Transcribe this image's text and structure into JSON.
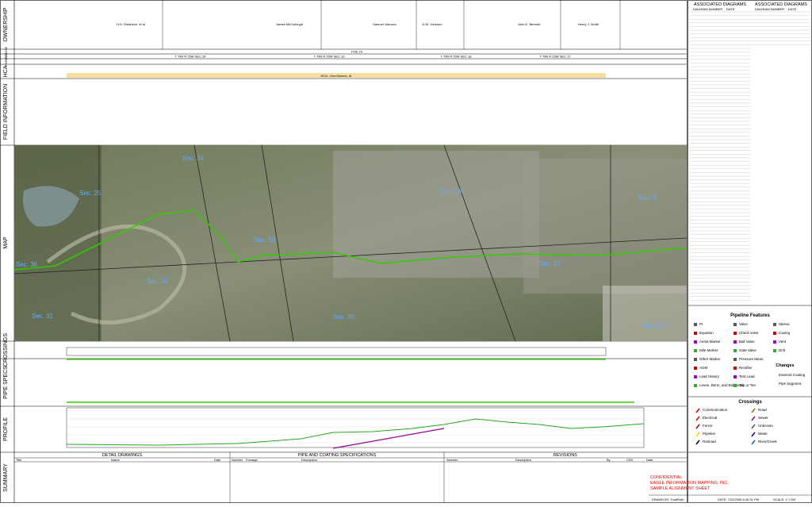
{
  "rows": [
    "OWNERSHIP",
    "STATE",
    "PLS",
    "PGRID",
    "HCA",
    "FIELD INFORMATION",
    "MAP",
    "CROSSINGS",
    "PIPE SPECS",
    "PROFILE",
    "SUMMARY"
  ],
  "ownership": [
    "H.D. Robinson, et al",
    "James McCullough",
    "Samuel Johnson",
    "D.W. Johnson",
    "John E. Bennett",
    "Henry J. Smith"
  ],
  "state": "Polk, IA",
  "pls": [
    "T 79N R 25W SEC 24",
    "T 79N R 25W SEC 19",
    "T 79N R 25W SEC 18",
    "T 79N R 25W SEC 17"
  ],
  "hca": "HCA - Des Moines, IA",
  "sections": [
    "Sec. 25",
    "Sec. 24",
    "Sec. 19",
    "Sec. 18",
    "Sec. 8",
    "Sec. 36",
    "Sec. 30",
    "Sec. 31",
    "Sec. 20",
    "Sec. 17",
    "Sec. 16"
  ],
  "diagrams": {
    "title": "ASSOCIATED DIAGRAMS",
    "columns": [
      "DIAGRAM NUMBER",
      "DATE"
    ]
  },
  "features": {
    "title": "Pipeline Features",
    "items": [
      "PI",
      "Equation",
      "Aerial Marker",
      "Mile Marker",
      "Other Marker",
      "AGM",
      "Leak History",
      "Levee, Berm, and Bulkhead",
      "Valve",
      "Check valve",
      "Ball Valve",
      "Gate Valve",
      "Pressure Meas.",
      "Rectifier",
      "Test Lead",
      "Tap or Tee",
      "Sleeve",
      "Casing",
      "Vent",
      "Drill"
    ],
    "changes_title": "Changes",
    "changes": [
      "External Coating",
      "Pipe Segment"
    ]
  },
  "crossings": {
    "title": "Crossings",
    "items": [
      "Communication",
      "Electrical",
      "Fence",
      "Pipeline",
      "Railroad",
      "Road",
      "Sewer",
      "Unknown",
      "Water",
      "River/Creek"
    ]
  },
  "summary": {
    "detail": "DETAIL DRAWINGS",
    "detail_cols": [
      "Title",
      "Name",
      "Date"
    ],
    "pipe": "PIPE AND COATING SPECIFICATIONS",
    "pipe_cols": [
      "Number",
      "Footage",
      "Description"
    ],
    "revisions": "REVISIONS",
    "rev_cols": [
      "Number",
      "Description",
      "By",
      "CKD",
      "Date"
    ]
  },
  "titleblock": {
    "confidential": "CONFIDENTIAL",
    "company": "EAGLE INFORMATION MAPPING, INC.",
    "sheet": "SAMPLE ALIGNMENT SHEET",
    "drawn": "DRAWN BY: ToddRuth",
    "date": "DATE: 7/22/2006 6:40:31 PM",
    "scale": "SCALE: 1\"=750'"
  }
}
